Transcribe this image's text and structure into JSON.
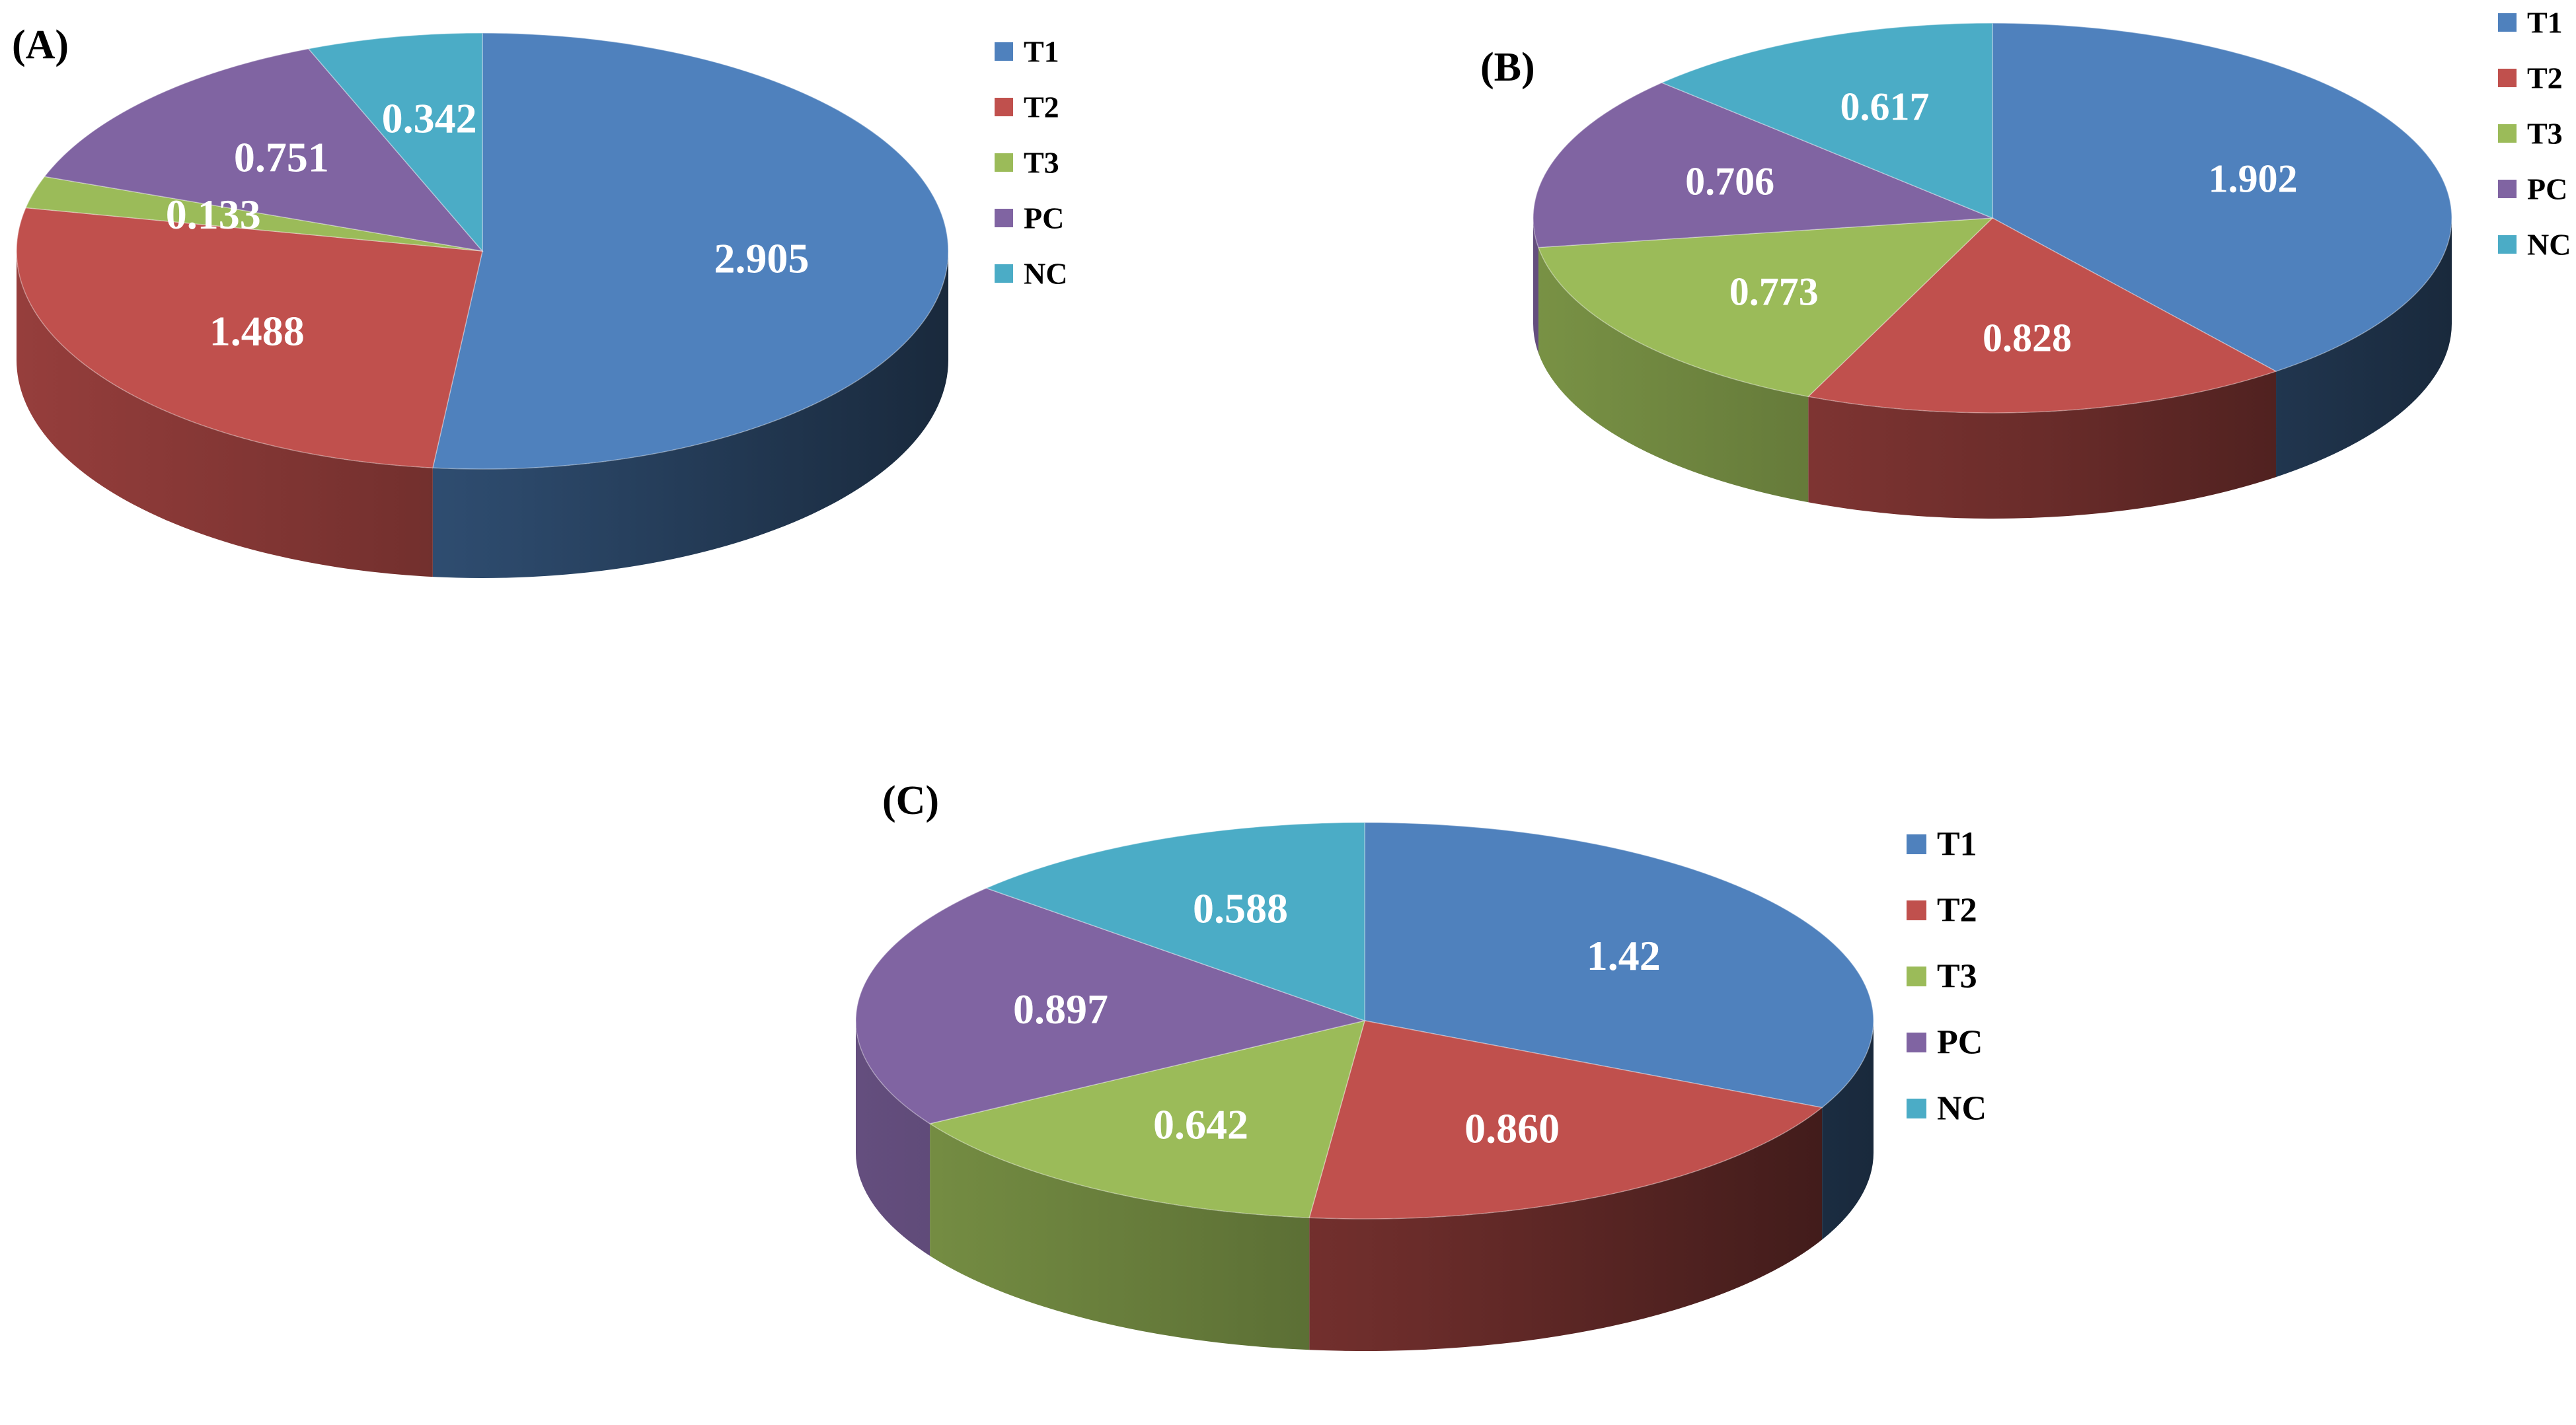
{
  "chart_data": [
    {
      "panel": "(A)",
      "type": "pie",
      "categories": [
        "T1",
        "T2",
        "T3",
        "PC",
        "NC"
      ],
      "values": [
        2.905,
        1.488,
        0.133,
        0.751,
        0.342
      ],
      "value_labels": [
        "2.905",
        "1.488",
        "0.133",
        "0.751",
        "0.342"
      ],
      "legend": [
        "T1",
        "T2",
        "T3",
        "PC",
        "NC"
      ],
      "legend_position": "right"
    },
    {
      "panel": "(B)",
      "type": "pie",
      "categories": [
        "T1",
        "T2",
        "T3",
        "PC",
        "NC"
      ],
      "values": [
        1.902,
        0.828,
        0.773,
        0.706,
        0.617
      ],
      "value_labels": [
        "1.902",
        "0.828",
        "0.773",
        "0.706",
        "0.617"
      ],
      "legend": [
        "T1",
        "T2",
        "T3",
        "PC",
        "NC"
      ],
      "legend_position": "top-right"
    },
    {
      "panel": "(C)",
      "type": "pie",
      "categories": [
        "T1",
        "T2",
        "T3",
        "PC",
        "NC"
      ],
      "values": [
        1.42,
        0.86,
        0.642,
        0.897,
        0.588
      ],
      "value_labels": [
        "1.42",
        "0.860",
        "0.642",
        "0.897",
        "0.588"
      ],
      "legend": [
        "T1",
        "T2",
        "T3",
        "PC",
        "NC"
      ],
      "legend_position": "right"
    }
  ],
  "colors": {
    "T1": "#4f81bd",
    "T2": "#c0504d",
    "T3": "#9bbb59",
    "PC": "#8064a2",
    "NC": "#4bacc6"
  },
  "style": "3D exploded-free pie charts, white bold value labels, slices start at 12 o'clock going clockwise"
}
